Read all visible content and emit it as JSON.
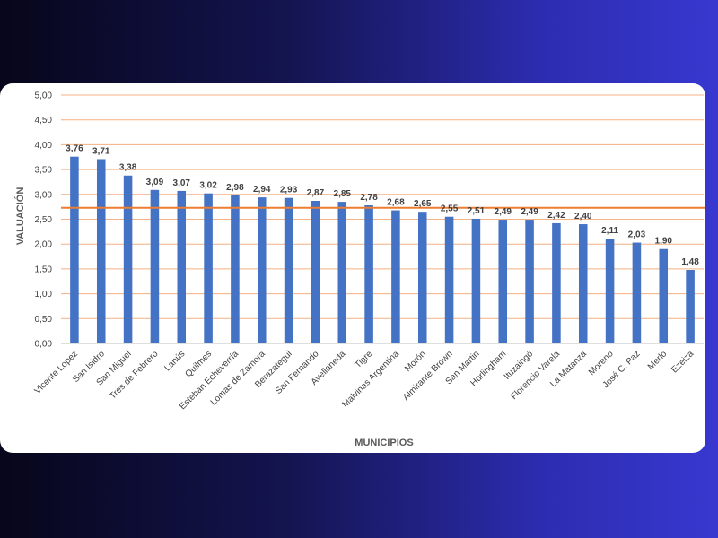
{
  "chart_data": {
    "type": "bar",
    "title": "",
    "xlabel": "MUNICIPIOS",
    "ylabel": "VALUACIÓN",
    "ylim": [
      0,
      5
    ],
    "yticks": [
      "0,00",
      "0,50",
      "1,00",
      "1,50",
      "2,00",
      "2,50",
      "3,00",
      "3,50",
      "4,00",
      "4,50",
      "5,00"
    ],
    "categories": [
      "Vicente Lopez",
      "San Isidro",
      "San Miguel",
      "Tres de Febrero",
      "Lanús",
      "Quilmes",
      "Esteban Echeverría",
      "Lomas de Zamora",
      "Berazategui",
      "San Fernando",
      "Avellaneda",
      "Tigre",
      "Malvinas Argentina",
      "Morón",
      "Almirante Brown",
      "San Martin",
      "Hurlingham",
      "Ituzaingó",
      "Florencio Varela",
      "La Matanza",
      "Moreno",
      "José C. Paz",
      "Merlo",
      "Ezeiza"
    ],
    "values": [
      3.76,
      3.71,
      3.38,
      3.09,
      3.07,
      3.02,
      2.98,
      2.94,
      2.93,
      2.87,
      2.85,
      2.78,
      2.68,
      2.65,
      2.55,
      2.51,
      2.49,
      2.49,
      2.42,
      2.4,
      2.11,
      2.03,
      1.9,
      1.48
    ],
    "value_labels": [
      "3,76",
      "3,71",
      "3,38",
      "3,09",
      "3,07",
      "3,02",
      "2,98",
      "2,94",
      "2,93",
      "2,87",
      "2,85",
      "2,78",
      "2,68",
      "2,65",
      "2,55",
      "2,51",
      "2,49",
      "2,49",
      "2,42",
      "2,40",
      "2,11",
      "2,03",
      "1,90",
      "1,48"
    ],
    "reference_line": 2.73,
    "grid": true,
    "legend": "none",
    "colors": {
      "bar": "#4472c4",
      "grid": "#f4b183",
      "reference_line": "#ed7d31",
      "text": "#404040"
    }
  }
}
